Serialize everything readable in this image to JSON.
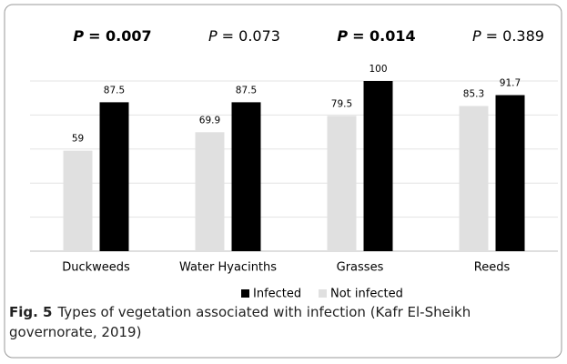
{
  "chart_data": {
    "type": "bar",
    "caption_label": "Fig. 5",
    "caption": "Types of vegetation associated with infection (Kafr El-Sheikh governorate, 2019)",
    "categories": [
      "Duckweeds",
      "Water Hyacinths",
      "Grasses",
      "Reeds"
    ],
    "series": [
      {
        "name": "Not infected",
        "color": "#e0e0e0",
        "values": [
          59,
          69.9,
          79.5,
          85.3
        ]
      },
      {
        "name": "Infected",
        "color": "#000000",
        "values": [
          87.5,
          87.5,
          100,
          91.7
        ]
      }
    ],
    "annotations": [
      {
        "label": "P",
        "text": "= 0.007",
        "bold": true
      },
      {
        "label": "P",
        "text": "= 0.073",
        "bold": false
      },
      {
        "label": "P",
        "text": "= 0.014",
        "bold": true
      },
      {
        "label": "P",
        "text": "= 0.389",
        "bold": false
      }
    ],
    "ylim": [
      0,
      100
    ],
    "yticks": [
      0,
      20,
      40,
      60,
      80,
      100
    ],
    "grid": true,
    "legend": "bottom"
  }
}
